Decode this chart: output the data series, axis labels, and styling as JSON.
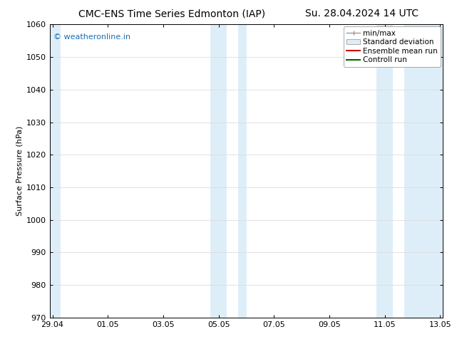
{
  "title_left": "CMC-ENS Time Series Edmonton (IAP)",
  "title_right": "Su. 28.04.2024 14 UTC",
  "ylabel": "Surface Pressure (hPa)",
  "ylim": [
    970,
    1060
  ],
  "yticks": [
    970,
    980,
    990,
    1000,
    1010,
    1020,
    1030,
    1040,
    1050,
    1060
  ],
  "xtick_labels": [
    "29.04",
    "01.05",
    "03.05",
    "05.05",
    "07.05",
    "09.05",
    "11.05",
    "13.05"
  ],
  "xtick_positions": [
    0,
    2,
    4,
    6,
    8,
    10,
    12,
    14
  ],
  "xlim": [
    -0.1,
    14.1
  ],
  "shaded_bands": [
    {
      "x_start": -0.1,
      "x_end": 0.3
    },
    {
      "x_start": 5.7,
      "x_end": 6.3
    },
    {
      "x_start": 6.7,
      "x_end": 7.0
    },
    {
      "x_start": 11.7,
      "x_end": 12.3
    },
    {
      "x_start": 12.7,
      "x_end": 14.1
    }
  ],
  "shade_color": "#ddeef8",
  "watermark_text": "© weatheronline.in",
  "watermark_color": "#1a6eb5",
  "legend_entries": [
    "min/max",
    "Standard deviation",
    "Ensemble mean run",
    "Controll run"
  ],
  "legend_line_colors": [
    "#999999",
    "#bbccdd",
    "#cc0000",
    "#006600"
  ],
  "bg_color": "#ffffff",
  "plot_bg_color": "#ffffff",
  "grid_color": "#dddddd",
  "tick_color": "#000000",
  "font_size": 8,
  "title_font_size": 10
}
